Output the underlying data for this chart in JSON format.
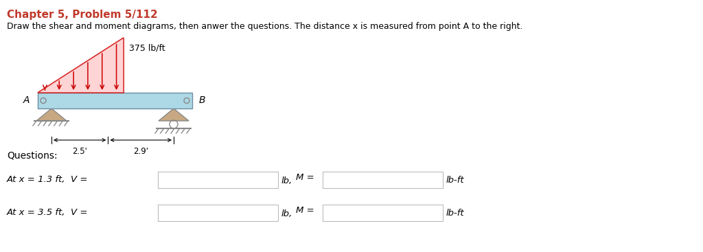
{
  "title": "Chapter 5, Problem 5/112",
  "title_color": "#C0392B",
  "subtitle": "Draw the shear and moment diagrams, then anwer the questions. The distance x is measured from point A to the right.",
  "subtitle_color": "#000000",
  "load_label": "375 lb/ft",
  "dist_left": "2.5'",
  "dist_right": "2.9'",
  "label_A": "A",
  "label_B": "B",
  "questions_label": "Questions:",
  "q1_text": "At x = 1.3 ft,  V =",
  "q2_text": "At x = 3.5 ft,  V =",
  "unit_lb": "lb,",
  "m_eq": "M =",
  "unit_lbft": "lb-ft",
  "beam_color": "#ADD8E6",
  "beam_edge_color": "#6B8EA0",
  "load_color": "#CC0000",
  "support_fill": "#C8A882",
  "support_edge": "#888888",
  "ground_color": "#888888",
  "dim_color": "#000000",
  "bg_color": "#FFFFFF",
  "text_color": "#000000",
  "box_edge_color": "#BBBBBB"
}
